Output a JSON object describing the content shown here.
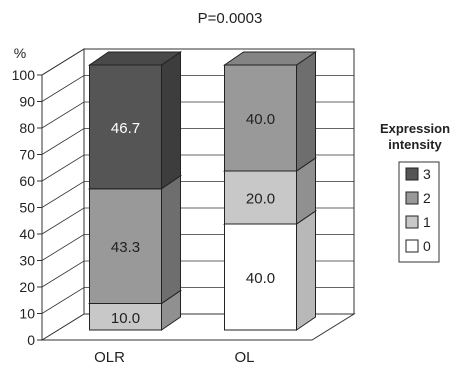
{
  "chart_data": {
    "type": "bar",
    "stacked": true,
    "three_d": true,
    "title": "P=0.0003",
    "ylabel": "%",
    "xlabel": "",
    "categories": [
      "OLR",
      "OL"
    ],
    "ylim": [
      0,
      100
    ],
    "yticks": [
      0,
      10,
      20,
      30,
      40,
      50,
      60,
      70,
      80,
      90,
      100
    ],
    "grid": true,
    "legend": {
      "title": "Expression intensity",
      "placement": "right"
    },
    "series": [
      {
        "name": "0",
        "values": [
          0.0,
          40.0
        ],
        "color": "#ffffff"
      },
      {
        "name": "1",
        "values": [
          10.0,
          20.0
        ],
        "color": "#c8c8c8"
      },
      {
        "name": "2",
        "values": [
          43.3,
          40.0
        ],
        "color": "#999999"
      },
      {
        "name": "3",
        "values": [
          46.7,
          0.0
        ],
        "color": "#555555"
      }
    ],
    "data_labels": [
      [
        "",
        "40.0"
      ],
      [
        "10.0",
        "20.0"
      ],
      [
        "43.3",
        "40.0"
      ],
      [
        "46.7",
        ""
      ]
    ]
  }
}
